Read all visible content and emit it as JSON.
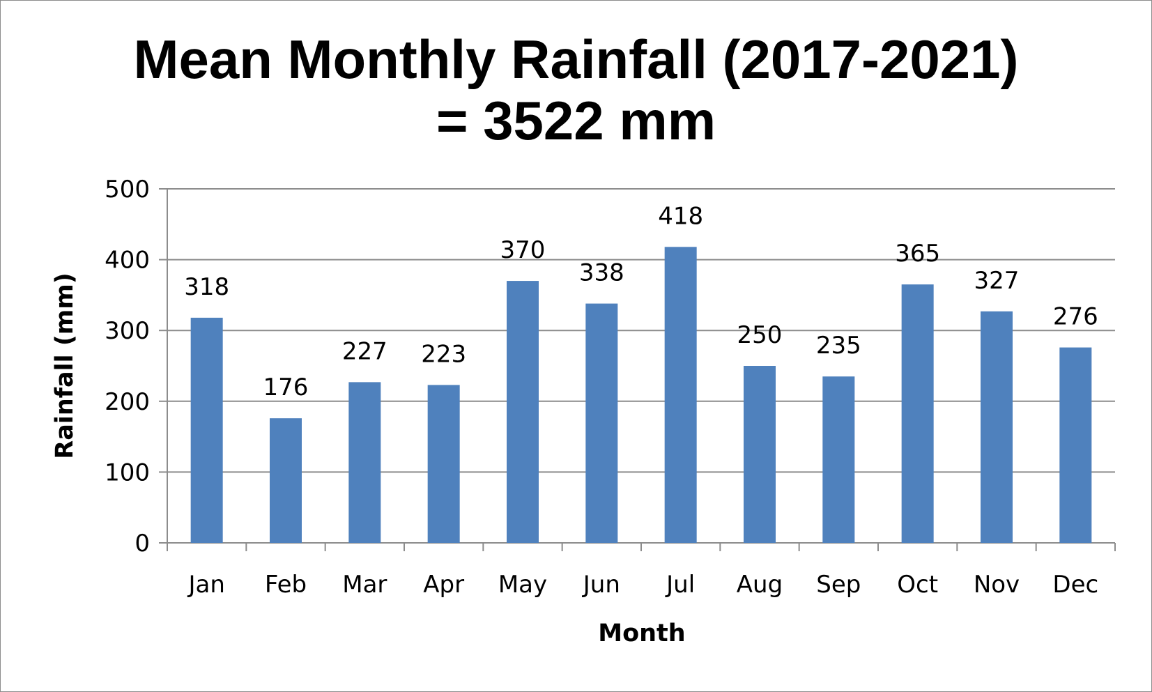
{
  "chart_data": {
    "type": "bar",
    "title": "Mean Monthly Rainfall (2017-2021)",
    "subtitle": "= 3522 mm",
    "xlabel": "Month",
    "ylabel": "Rainfall (mm)",
    "categories": [
      "Jan",
      "Feb",
      "Mar",
      "Apr",
      "May",
      "Jun",
      "Jul",
      "Aug",
      "Sep",
      "Oct",
      "Nov",
      "Dec"
    ],
    "values": [
      318,
      176,
      227,
      223,
      370,
      338,
      418,
      250,
      235,
      365,
      327,
      276
    ],
    "ylim": [
      0,
      500
    ],
    "yticks": [
      0,
      100,
      200,
      300,
      400,
      500
    ],
    "grid": true,
    "legend": "none",
    "bar_color": "#4f81bd",
    "grid_color": "#8c8c8c",
    "axis_color": "#8c8c8c"
  }
}
